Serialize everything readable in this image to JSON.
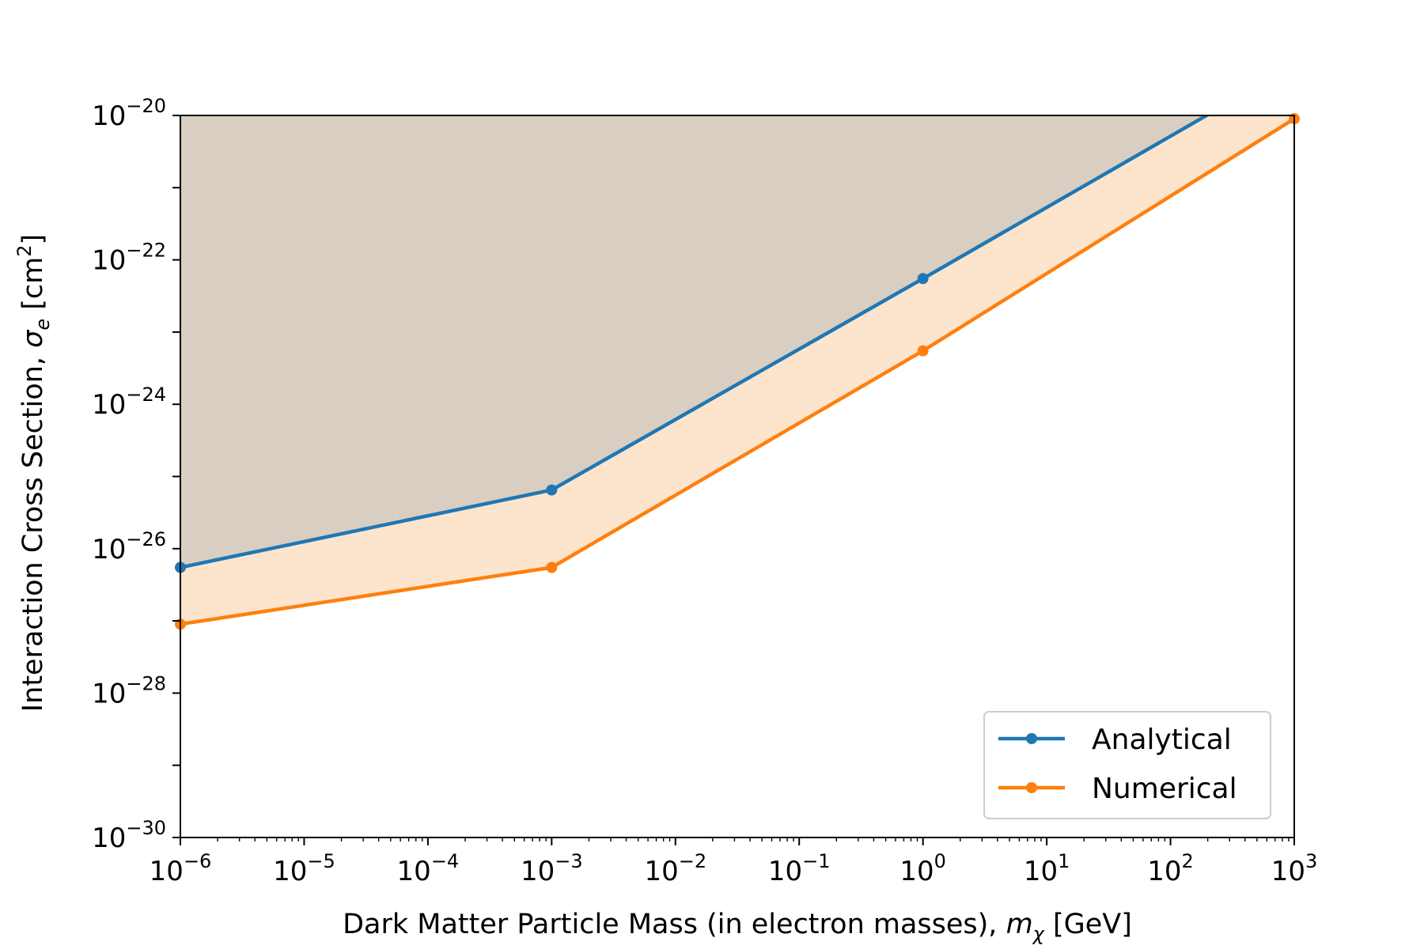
{
  "chart_data": {
    "type": "line",
    "xscale": "log",
    "yscale": "log",
    "xlim": [
      1e-06,
      1000.0
    ],
    "ylim": [
      1e-30,
      1e-20
    ],
    "xlabel": "Dark Matter Particle Mass (in electron masses), m_χ [GeV]",
    "ylabel": "Interaction Cross Section, σ_e [cm²]",
    "x_ticks": [
      {
        "value": 1e-06,
        "base": "10",
        "exp": "−6"
      },
      {
        "value": 1e-05,
        "base": "10",
        "exp": "−5"
      },
      {
        "value": 0.0001,
        "base": "10",
        "exp": "−4"
      },
      {
        "value": 0.001,
        "base": "10",
        "exp": "−3"
      },
      {
        "value": 0.01,
        "base": "10",
        "exp": "−2"
      },
      {
        "value": 0.1,
        "base": "10",
        "exp": "−1"
      },
      {
        "value": 1.0,
        "base": "10",
        "exp": "0"
      },
      {
        "value": 10.0,
        "base": "10",
        "exp": "1"
      },
      {
        "value": 100.0,
        "base": "10",
        "exp": "2"
      },
      {
        "value": 1000.0,
        "base": "10",
        "exp": "3"
      }
    ],
    "y_ticks": [
      {
        "value": 1e-30,
        "base": "10",
        "exp": "−30"
      },
      {
        "value": 1e-28,
        "base": "10",
        "exp": "−28"
      },
      {
        "value": 1e-26,
        "base": "10",
        "exp": "−26"
      },
      {
        "value": 1e-24,
        "base": "10",
        "exp": "−24"
      },
      {
        "value": 1e-22,
        "base": "10",
        "exp": "−22"
      },
      {
        "value": 1e-20,
        "base": "10",
        "exp": "−20"
      }
    ],
    "grid": false,
    "legend_position": "lower-right",
    "series": [
      {
        "name": "Analytical",
        "color": "#1f77b4",
        "fill_color": "#d9cec2",
        "fill_to": "top",
        "x": [
          1e-06,
          0.001,
          1.0,
          1000.0
        ],
        "y": [
          5.5e-27,
          6.5e-26,
          5.5e-23,
          5e-20
        ]
      },
      {
        "name": "Numerical",
        "color": "#ff7f0e",
        "fill_color": "#fde4cd",
        "fill_to": "previous",
        "x": [
          1e-06,
          0.001,
          1.0,
          1000.0
        ],
        "y": [
          9e-28,
          5.5e-27,
          5.5e-24,
          9e-21
        ]
      }
    ]
  }
}
